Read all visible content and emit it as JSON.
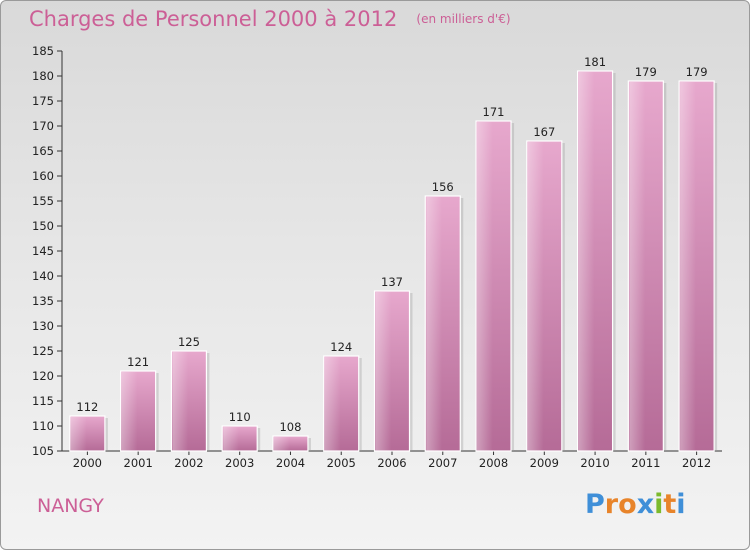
{
  "chart_data": {
    "type": "bar",
    "title": "Charges de Personnel 2000 à 2012",
    "subtitle": "(en milliers d'€)",
    "xlabel": "",
    "ylabel": "",
    "categories": [
      "2000",
      "2001",
      "2002",
      "2003",
      "2004",
      "2005",
      "2006",
      "2007",
      "2008",
      "2009",
      "2010",
      "2011",
      "2012"
    ],
    "values": [
      112,
      121,
      125,
      110,
      108,
      124,
      137,
      156,
      171,
      167,
      181,
      179,
      179
    ],
    "ylim": [
      105,
      185
    ],
    "yticks": [
      105,
      110,
      115,
      120,
      125,
      130,
      135,
      140,
      145,
      150,
      155,
      160,
      165,
      170,
      175,
      180,
      185
    ],
    "grid": false,
    "bar_color": "#d98cb8"
  },
  "commune": "NANGY",
  "logo": {
    "letters": [
      "P",
      "r",
      "o",
      "x",
      "i",
      "t",
      "i"
    ],
    "colors": [
      "#3f8fd8",
      "#e8842a",
      "#e8842a",
      "#3f8fd8",
      "#7cba2c",
      "#e8842a",
      "#3f8fd8"
    ]
  }
}
